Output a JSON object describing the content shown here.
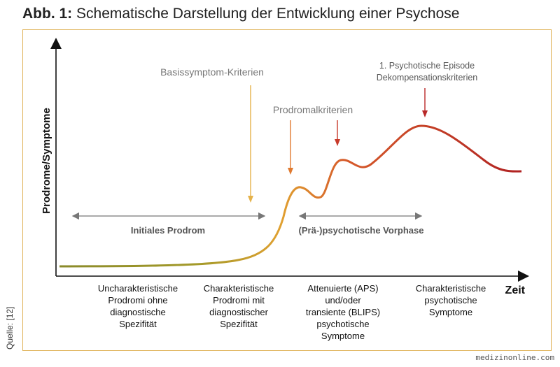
{
  "title": {
    "prefix": "Abb. 1:",
    "text": "Schematische Darstellung der Entwicklung einer Psychose"
  },
  "axes": {
    "y_label": "Prodrome/Symptome",
    "x_label": "Zeit"
  },
  "annotations": {
    "basis": "Basissymptom-Kriterien",
    "prodromal": "Prodromalkriterien",
    "episode_line1": "1. Psychotische Episode",
    "episode_line2": "Dekompensationskriterien"
  },
  "phases": {
    "initial": "Initiales Prodrom",
    "pre": "(Prä-)psychotische Vorphase"
  },
  "stages": [
    [
      "Uncharakteristische",
      "Prodromi ohne",
      "diagnostische",
      "Spezifität"
    ],
    [
      "Charakteristische",
      "Prodromi mit",
      "diagnostischer",
      "Spezifität"
    ],
    [
      "Attenuierte (APS)",
      "und/oder",
      "transiente (BLIPS)",
      "psychotische",
      "Symptome"
    ],
    [
      "Charakteristische",
      "psychotische",
      "Symptome"
    ]
  ],
  "colors": {
    "frame": "#e0b35a",
    "curve_start": "#8a8a2a",
    "curve_mid": "#e0a030",
    "curve_end": "#c0282a",
    "arrow_basis": "#e5b24a",
    "arrow_prodromal": "#d0502a",
    "arrow_episode": "#b82828"
  },
  "source": "Quelle: [12]",
  "watermark": "medizinonline.com"
}
